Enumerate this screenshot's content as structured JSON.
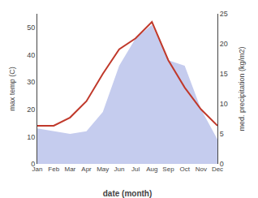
{
  "chart_data": {
    "type": "line",
    "xlabel": "date (month)",
    "ylabel": "max temp (C)",
    "y2label": "med. precipitation (kg/m2)",
    "categories": [
      "Jan",
      "Feb",
      "Mar",
      "Apr",
      "May",
      "Jun",
      "Jul",
      "Aug",
      "Sep",
      "Oct",
      "Nov",
      "Dec"
    ],
    "series": [
      {
        "type": "area",
        "color": "#c5ccee",
        "values": [
          13,
          12,
          11,
          12,
          19,
          36,
          46,
          51,
          38,
          36,
          20,
          9
        ]
      },
      {
        "type": "line",
        "color": "#c0392b",
        "values": [
          14,
          14,
          17,
          23,
          33,
          42,
          46,
          52,
          38,
          28,
          20,
          14
        ]
      }
    ],
    "ylim": [
      0,
      55
    ],
    "yticks": [
      0,
      10,
      20,
      30,
      40,
      50
    ],
    "y2lim": [
      0,
      25
    ],
    "y2ticks": [
      0,
      5,
      10,
      15,
      20,
      25
    ],
    "grid": false
  }
}
